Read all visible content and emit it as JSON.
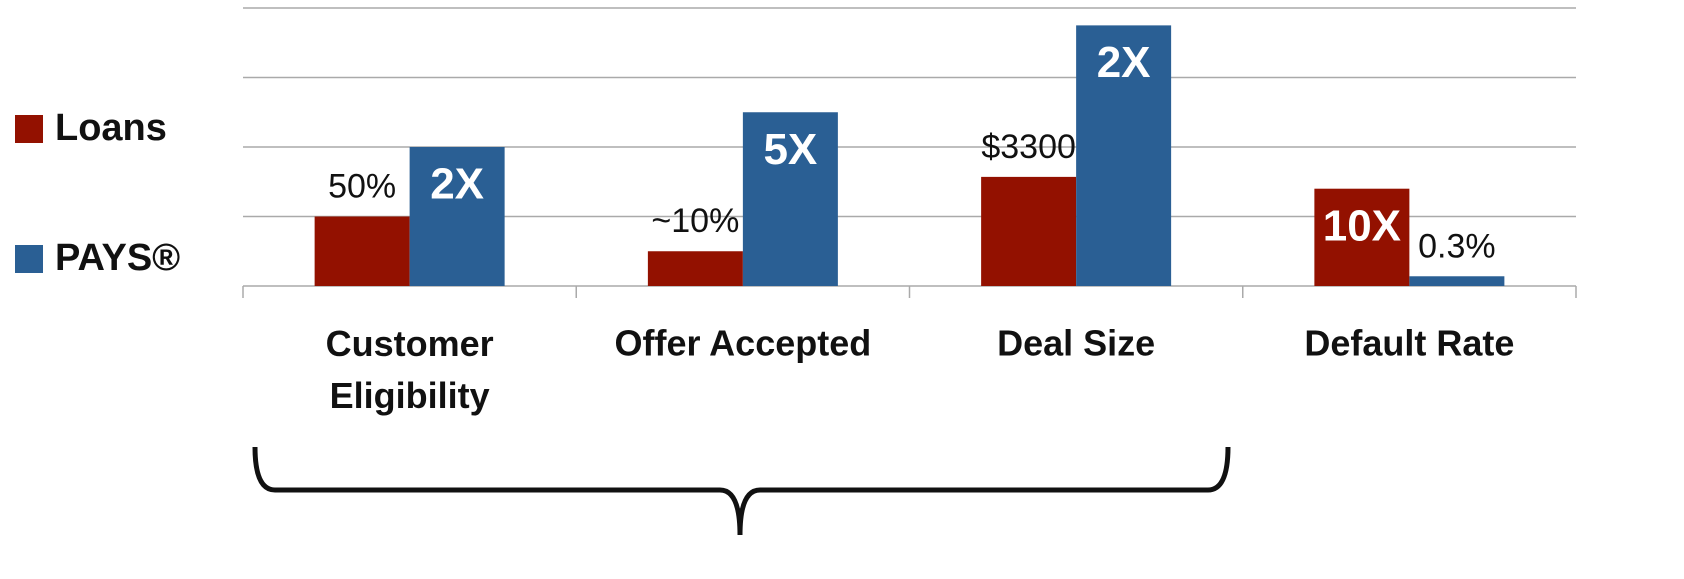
{
  "chart_data": {
    "type": "bar",
    "categories": [
      "Customer\nEligibility",
      "Offer Accepted",
      "Deal Size",
      "Default Rate"
    ],
    "series": [
      {
        "name": "Loans",
        "color": "#931100",
        "values": [
          1.0,
          0.5,
          1.57,
          1.4
        ],
        "bar_labels": [
          "50%",
          "~10%",
          "$3300",
          "10X"
        ]
      },
      {
        "name": "PAYS®",
        "color": "#2a5f94",
        "values": [
          2.0,
          2.5,
          3.75,
          0.14
        ],
        "bar_labels": [
          "2X",
          "5X",
          "2X",
          "0.3%"
        ]
      }
    ],
    "ylim": [
      0,
      4
    ],
    "yticks": [
      1,
      2,
      3,
      4
    ],
    "grid": true,
    "legend": "left"
  }
}
